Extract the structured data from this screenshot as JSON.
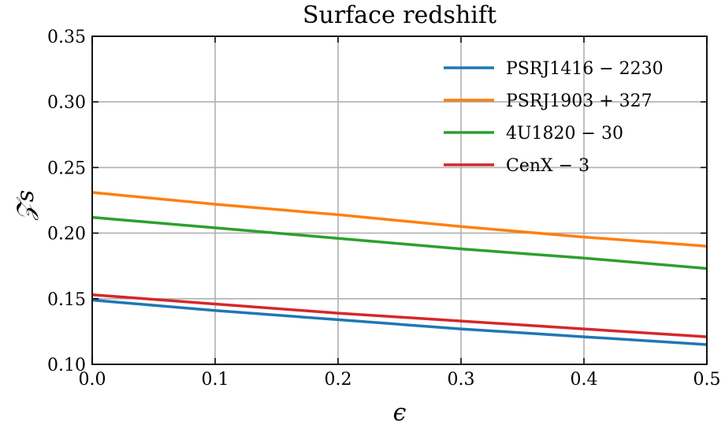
{
  "chart_data": {
    "type": "line",
    "title": "Surface redshift",
    "xlabel": "ϵ",
    "ylabel": "𝒵s",
    "xlim": [
      0.0,
      0.5
    ],
    "ylim": [
      0.1,
      0.35
    ],
    "xticks": [
      0.0,
      0.1,
      0.2,
      0.3,
      0.4,
      0.5
    ],
    "xtick_labels": [
      "0.0",
      "0.1",
      "0.2",
      "0.3",
      "0.4",
      "0.5"
    ],
    "yticks": [
      0.1,
      0.15,
      0.2,
      0.25,
      0.3,
      0.35
    ],
    "ytick_labels": [
      "0.10",
      "0.15",
      "0.20",
      "0.25",
      "0.30",
      "0.35"
    ],
    "grid": true,
    "legend_position": "top-right",
    "series": [
      {
        "name": "PSRJ1416 − 2230",
        "color": "#1f77b4",
        "x": [
          0.0,
          0.1,
          0.2,
          0.3,
          0.4,
          0.5
        ],
        "y": [
          0.149,
          0.141,
          0.134,
          0.127,
          0.121,
          0.115
        ]
      },
      {
        "name": "PSRJ1903 + 327",
        "color": "#ff7f0e",
        "x": [
          0.0,
          0.1,
          0.2,
          0.3,
          0.4,
          0.5
        ],
        "y": [
          0.231,
          0.222,
          0.214,
          0.205,
          0.197,
          0.19
        ]
      },
      {
        "name": "4U1820 − 30",
        "color": "#2ca02c",
        "x": [
          0.0,
          0.1,
          0.2,
          0.3,
          0.4,
          0.5
        ],
        "y": [
          0.212,
          0.204,
          0.196,
          0.188,
          0.181,
          0.173
        ]
      },
      {
        "name": "CenX − 3",
        "color": "#d62728",
        "x": [
          0.0,
          0.1,
          0.2,
          0.3,
          0.4,
          0.5
        ],
        "y": [
          0.153,
          0.146,
          0.139,
          0.133,
          0.127,
          0.121
        ]
      }
    ]
  }
}
